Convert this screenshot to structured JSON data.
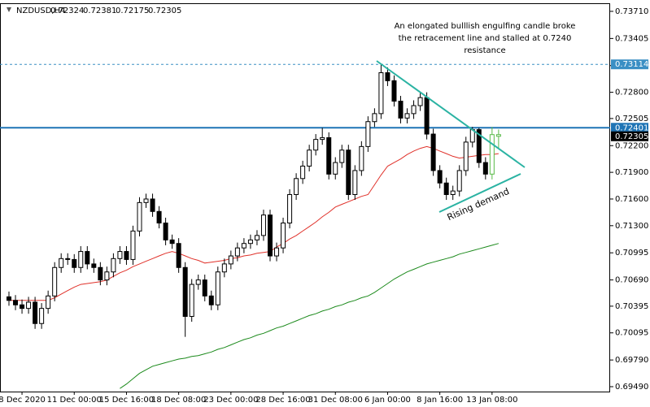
{
  "chart_data": {
    "type": "candlestick",
    "symbol": "NZDUSD,H4",
    "annotation": [
      "An elongated bulllish engulfing candle broke",
      "the retracement line and stalled at 0.7240",
      "resistance"
    ],
    "trend_label": "Rising demand",
    "categories": [
      null,
      null,
      "8 Dec 2020",
      null,
      null,
      null,
      null,
      null,
      null,
      null,
      "11 Dec 00:00",
      null,
      null,
      null,
      null,
      null,
      null,
      null,
      "15 Dec 16:00",
      null,
      null,
      null,
      null,
      null,
      null,
      null,
      "18 Dec 08:00",
      null,
      null,
      null,
      null,
      null,
      null,
      null,
      "23 Dec 00:00",
      null,
      null,
      null,
      null,
      null,
      null,
      null,
      "28 Dec 16:00",
      null,
      null,
      null,
      null,
      null,
      null,
      null,
      "31 Dec 08:00",
      null,
      null,
      null,
      null,
      null,
      null,
      null,
      "6 Jan 00:00",
      null,
      null,
      null,
      null,
      null,
      null,
      null,
      "8 Jan 16:00",
      null,
      null,
      null,
      null,
      null,
      null,
      null,
      "13 Jan 08:00",
      null
    ],
    "open": [
      0.705,
      0.7046,
      0.7041,
      0.7037,
      0.7044,
      0.702,
      0.7037,
      0.7051,
      0.7083,
      0.7093,
      0.7092,
      0.7083,
      0.7101,
      0.7087,
      0.7083,
      0.7069,
      0.7078,
      0.7093,
      0.7101,
      0.7092,
      0.7124,
      0.7156,
      0.716,
      0.7146,
      0.7133,
      0.7114,
      0.711,
      0.7083,
      0.7028,
      0.7064,
      0.7069,
      0.7051,
      0.7041,
      0.7078,
      0.7087,
      0.7096,
      0.7105,
      0.711,
      0.7114,
      0.7119,
      0.7142,
      0.7096,
      0.7105,
      0.7133,
      0.7165,
      0.7183,
      0.7197,
      0.7215,
      0.7227,
      0.7229,
      0.7188,
      0.7201,
      0.7215,
      0.7165,
      0.7192,
      0.7219,
      0.7247,
      0.7256,
      0.7302,
      0.7293,
      0.727,
      0.7251,
      0.7256,
      0.7265,
      0.7274,
      0.7233,
      0.7192,
      0.7178,
      0.7165,
      0.7169,
      0.7192,
      0.7224,
      0.7238,
      0.7201,
      0.7188,
      0.72324
    ],
    "high": [
      0.7056,
      0.7052,
      0.7047,
      0.705,
      0.705,
      0.7043,
      0.7057,
      0.7089,
      0.7099,
      0.7099,
      0.7098,
      0.7107,
      0.7107,
      0.7093,
      0.7089,
      0.7084,
      0.7099,
      0.7107,
      0.7107,
      0.713,
      0.7162,
      0.7166,
      0.7166,
      0.7152,
      0.7139,
      0.712,
      0.7116,
      0.7089,
      0.707,
      0.7075,
      0.7075,
      0.7057,
      0.7084,
      0.7093,
      0.7102,
      0.7111,
      0.7116,
      0.712,
      0.7125,
      0.7148,
      0.7148,
      0.7111,
      0.7139,
      0.7171,
      0.7189,
      0.7203,
      0.7221,
      0.7233,
      0.724,
      0.7235,
      0.7207,
      0.7221,
      0.7221,
      0.7198,
      0.7225,
      0.7253,
      0.7262,
      0.7311,
      0.7308,
      0.7299,
      0.7276,
      0.7262,
      0.7271,
      0.728,
      0.728,
      0.7239,
      0.7198,
      0.7184,
      0.7175,
      0.7198,
      0.723,
      0.7241,
      0.724,
      0.7207,
      0.7241,
      0.72381
    ],
    "low": [
      0.704,
      0.7035,
      0.7031,
      0.7031,
      0.7014,
      0.7014,
      0.7031,
      0.7045,
      0.7077,
      0.7086,
      0.7077,
      0.7077,
      0.7081,
      0.7077,
      0.7063,
      0.7063,
      0.7072,
      0.7087,
      0.7086,
      0.7086,
      0.7118,
      0.715,
      0.714,
      0.7127,
      0.7108,
      0.7104,
      0.7077,
      0.7005,
      0.7022,
      0.7058,
      0.7045,
      0.7035,
      0.7035,
      0.7072,
      0.7081,
      0.709,
      0.7099,
      0.7104,
      0.7108,
      0.7113,
      0.709,
      0.709,
      0.7099,
      0.7127,
      0.7159,
      0.7177,
      0.7191,
      0.7209,
      0.7221,
      0.7182,
      0.7182,
      0.7195,
      0.7159,
      0.7159,
      0.7186,
      0.7213,
      0.7241,
      0.725,
      0.7287,
      0.7264,
      0.7245,
      0.7245,
      0.725,
      0.7259,
      0.7227,
      0.7186,
      0.7172,
      0.7159,
      0.7159,
      0.7163,
      0.7186,
      0.7218,
      0.7195,
      0.7182,
      0.7182,
      0.72175
    ],
    "close": [
      0.7046,
      0.7041,
      0.7037,
      0.7044,
      0.702,
      0.7037,
      0.7051,
      0.7083,
      0.7093,
      0.7092,
      0.7083,
      0.7101,
      0.7087,
      0.7083,
      0.7069,
      0.7078,
      0.7093,
      0.7101,
      0.7092,
      0.7124,
      0.7156,
      0.716,
      0.7146,
      0.7133,
      0.7114,
      0.711,
      0.7083,
      0.7028,
      0.7064,
      0.7069,
      0.7051,
      0.7041,
      0.7078,
      0.7087,
      0.7096,
      0.7105,
      0.711,
      0.7114,
      0.7119,
      0.7142,
      0.7096,
      0.7105,
      0.7133,
      0.7165,
      0.7183,
      0.7197,
      0.7215,
      0.7227,
      0.7229,
      0.7188,
      0.7201,
      0.7215,
      0.7165,
      0.7192,
      0.7219,
      0.7247,
      0.7256,
      0.7302,
      0.7293,
      0.727,
      0.7251,
      0.7256,
      0.7265,
      0.7274,
      0.7233,
      0.7192,
      0.7178,
      0.7165,
      0.7169,
      0.7192,
      0.7224,
      0.7238,
      0.7201,
      0.7188,
      0.72324,
      0.72305
    ],
    "up_color": "#ffffff",
    "down_color": "#000000",
    "wick_color": "#000000",
    "highlight": {
      "candles": [
        74,
        75
      ],
      "color": "#58b947"
    },
    "series": [
      {
        "color": "#e0312a",
        "values": [
          0.7046,
          0.7046,
          0.7046,
          0.7046,
          0.7046,
          0.7046,
          0.7046,
          0.7049,
          0.7053,
          0.7057,
          0.7061,
          0.7064,
          0.7065,
          0.7066,
          0.7067,
          0.7069,
          0.7073,
          0.7077,
          0.708,
          0.7084,
          0.7087,
          0.709,
          0.7093,
          0.7096,
          0.7099,
          0.7101,
          0.7099,
          0.7096,
          0.7093,
          0.7091,
          0.7088,
          0.7089,
          0.709,
          0.7091,
          0.7093,
          0.7094,
          0.7096,
          0.7097,
          0.7099,
          0.71,
          0.7101,
          0.7106,
          0.711,
          0.7115,
          0.7119,
          0.7124,
          0.7129,
          0.7134,
          0.714,
          0.7145,
          0.7151,
          0.7154,
          0.7157,
          0.716,
          0.7163,
          0.7165,
          0.7176,
          0.7187,
          0.7197,
          0.7201,
          0.7205,
          0.721,
          0.7214,
          0.7217,
          0.7219,
          0.7217,
          0.7214,
          0.7211,
          0.7208,
          0.7206,
          0.7207,
          0.7208,
          0.7209,
          0.721,
          0.721,
          0.7211
        ]
      },
      {
        "color": "#1c8a1c",
        "values": [
          null,
          null,
          null,
          null,
          null,
          null,
          null,
          null,
          null,
          null,
          null,
          null,
          null,
          null,
          null,
          null,
          null,
          0.6947,
          0.6952,
          0.6958,
          0.6964,
          0.6968,
          0.6972,
          0.6974,
          0.6976,
          0.6978,
          0.698,
          0.6981,
          0.6983,
          0.6984,
          0.6986,
          0.6988,
          0.6991,
          0.6993,
          0.6996,
          0.6999,
          0.7002,
          0.7004,
          0.7007,
          0.7009,
          0.7012,
          0.7015,
          0.7017,
          0.702,
          0.7023,
          0.7026,
          0.7029,
          0.7031,
          0.7034,
          0.7036,
          0.7039,
          0.7041,
          0.7044,
          0.7046,
          0.7049,
          0.7051,
          0.7055,
          0.706,
          0.7065,
          0.707,
          0.7074,
          0.7078,
          0.7081,
          0.7084,
          0.7087,
          0.7089,
          0.7091,
          0.7093,
          0.7095,
          0.7098,
          0.71,
          0.7102,
          0.7104,
          0.7106,
          0.7108,
          0.711
        ]
      }
    ],
    "levels": [
      {
        "value": 0.73114,
        "color": "#3a8fc4",
        "style": "dashed"
      },
      {
        "value": 0.72401,
        "color": "#1f74b5",
        "style": "solid"
      }
    ],
    "current_color": "#000000",
    "ylim": [
      0.69435,
      0.73801
    ],
    "yticks": [
      {
        "value": 0.7371,
        "label": "0.73710"
      },
      0.73405,
      {
        "value": 0.731,
        "label": "0.73100"
      },
      {
        "value": 0.728,
        "label": "0.72800"
      },
      0.72505,
      {
        "value": 0.722,
        "label": "0.72200"
      },
      {
        "value": 0.719,
        "label": "0.71900"
      },
      {
        "value": 0.716,
        "label": "0.71600"
      },
      {
        "value": 0.713,
        "label": "0.71300"
      },
      0.70995,
      {
        "value": 0.7069,
        "label": "0.70690"
      },
      0.70395,
      0.70095,
      {
        "value": 0.6979,
        "label": "0.69790"
      },
      {
        "value": 0.6949,
        "label": "0.69490"
      }
    ]
  }
}
